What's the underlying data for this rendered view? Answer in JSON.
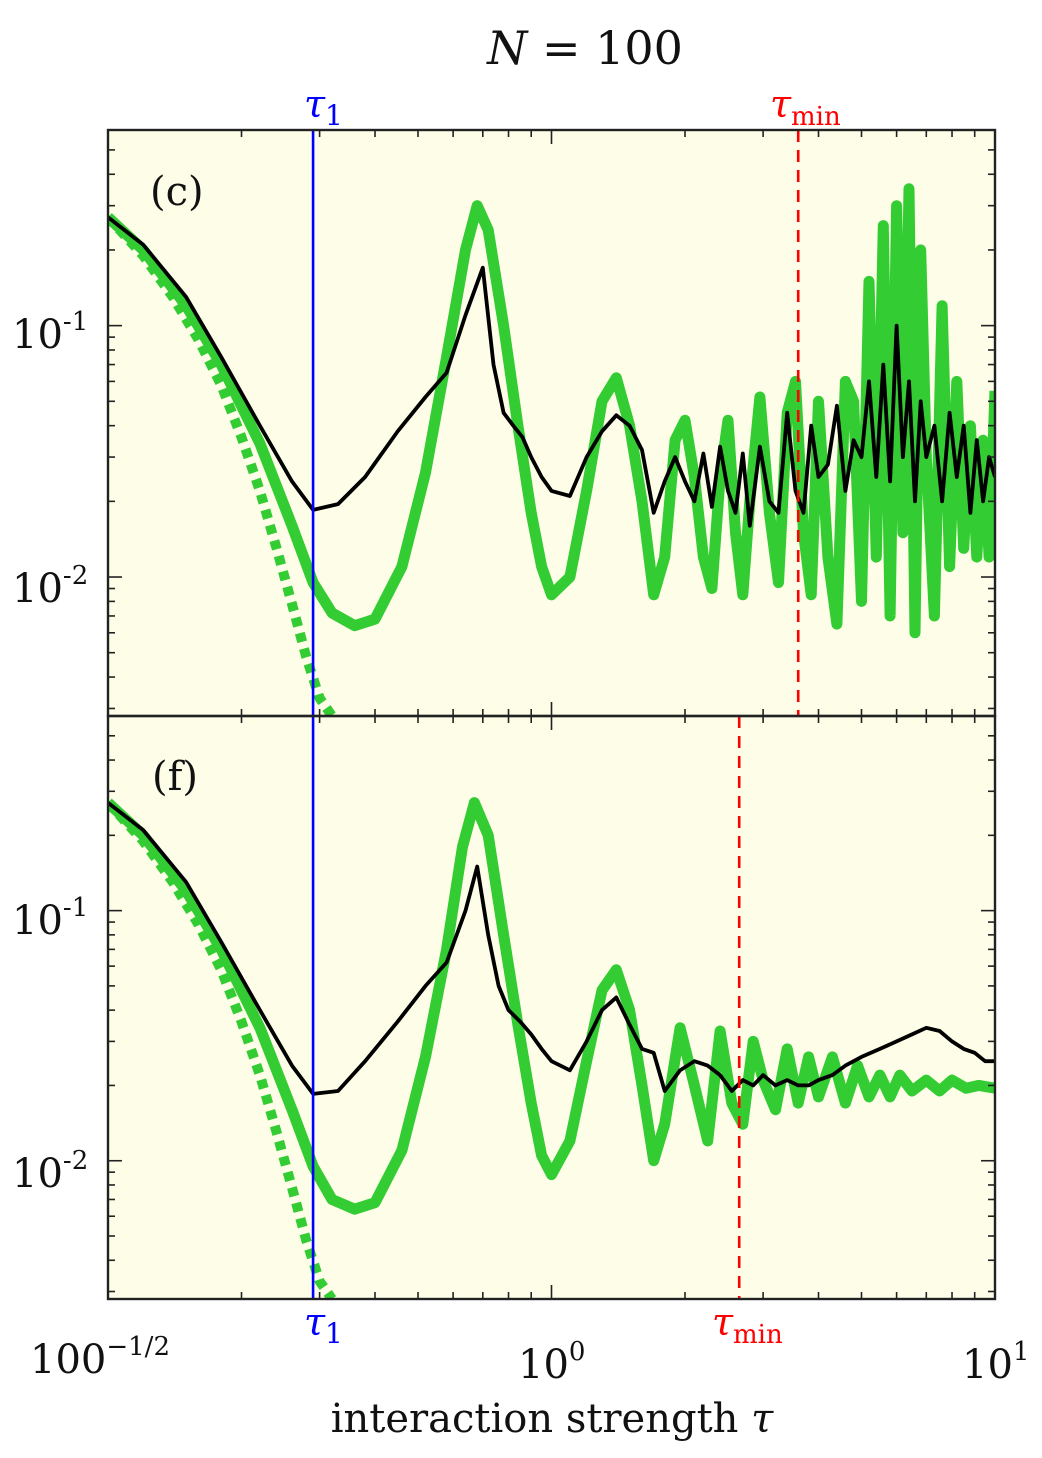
{
  "figure": {
    "title": "N = 100",
    "xlabel": "interaction strength τ",
    "xticklabels": [
      "100^{-1/2}",
      "10^{0}",
      "10^{1}"
    ],
    "yticklabels": [
      "10^{-1}",
      "10^{-2}"
    ],
    "marker_labels": {
      "tau1": "τ1",
      "tau_min": "τmin"
    }
  },
  "colors": {
    "background": "#ffffff",
    "panel_background": "#fdfde8",
    "green": "#33cc33",
    "black": "#000000",
    "tau1_line": "#0000ff",
    "tau_min_line": "#ff0000"
  },
  "chart_data": [
    {
      "type": "line",
      "panel_label": "(c)",
      "xscale": "log",
      "yscale": "log",
      "xlim": [
        0.1,
        10
      ],
      "ylim": [
        0.0028,
        0.6
      ],
      "xticks": [
        0.1,
        1,
        10
      ],
      "yticks": [
        0.1,
        0.01
      ],
      "grid": false,
      "vlines": [
        {
          "label": "τ1",
          "x": 0.29,
          "style": "solid",
          "color": "#0000ff"
        },
        {
          "label": "τmin",
          "x": 3.6,
          "style": "dashed",
          "color": "#ff0000"
        }
      ],
      "series": [
        {
          "style": "thick-solid",
          "color": "#33cc33",
          "x": [
            0.1,
            0.12,
            0.15,
            0.18,
            0.22,
            0.26,
            0.29,
            0.32,
            0.36,
            0.4,
            0.46,
            0.52,
            0.58,
            0.64,
            0.68,
            0.72,
            0.78,
            0.84,
            0.9,
            0.95,
            1.0,
            1.1,
            1.2,
            1.3,
            1.4,
            1.5,
            1.6,
            1.7,
            1.8,
            1.9,
            2.0,
            2.1,
            2.2,
            2.3,
            2.4,
            2.5,
            2.6,
            2.7,
            2.8,
            2.95,
            3.1,
            3.25,
            3.4,
            3.55,
            3.7,
            3.85,
            4.0,
            4.2,
            4.4,
            4.6,
            4.8,
            5.0,
            5.2,
            5.4,
            5.6,
            5.8,
            6.0,
            6.2,
            6.4,
            6.6,
            6.8,
            7.0,
            7.3,
            7.6,
            7.9,
            8.2,
            8.5,
            8.8,
            9.1,
            9.4,
            9.7,
            10.0
          ],
          "y": [
            0.27,
            0.2,
            0.12,
            0.07,
            0.034,
            0.016,
            0.0095,
            0.0072,
            0.0064,
            0.0068,
            0.011,
            0.026,
            0.075,
            0.2,
            0.3,
            0.24,
            0.1,
            0.04,
            0.018,
            0.011,
            0.0085,
            0.01,
            0.022,
            0.05,
            0.062,
            0.04,
            0.02,
            0.0085,
            0.012,
            0.035,
            0.042,
            0.025,
            0.012,
            0.009,
            0.025,
            0.042,
            0.015,
            0.0085,
            0.02,
            0.052,
            0.018,
            0.0095,
            0.045,
            0.06,
            0.015,
            0.0085,
            0.05,
            0.012,
            0.0065,
            0.06,
            0.05,
            0.008,
            0.15,
            0.012,
            0.25,
            0.007,
            0.3,
            0.015,
            0.35,
            0.006,
            0.2,
            0.03,
            0.007,
            0.12,
            0.011,
            0.06,
            0.013,
            0.04,
            0.012,
            0.035,
            0.012,
            0.055
          ]
        },
        {
          "style": "thick-dotted",
          "color": "#33cc33",
          "x": [
            0.1,
            0.12,
            0.14,
            0.16,
            0.18,
            0.2,
            0.22,
            0.24,
            0.26,
            0.28,
            0.3,
            0.32
          ],
          "y": [
            0.27,
            0.19,
            0.13,
            0.088,
            0.058,
            0.036,
            0.022,
            0.013,
            0.0078,
            0.0048,
            0.0033,
            0.0028
          ]
        },
        {
          "style": "solid",
          "color": "#000000",
          "x": [
            0.1,
            0.12,
            0.15,
            0.18,
            0.22,
            0.26,
            0.29,
            0.33,
            0.38,
            0.45,
            0.52,
            0.58,
            0.64,
            0.7,
            0.74,
            0.78,
            0.82,
            0.86,
            0.9,
            0.95,
            1.0,
            1.1,
            1.2,
            1.3,
            1.4,
            1.5,
            1.6,
            1.7,
            1.8,
            1.9,
            2.0,
            2.1,
            2.2,
            2.3,
            2.4,
            2.5,
            2.6,
            2.7,
            2.8,
            2.95,
            3.1,
            3.25,
            3.4,
            3.55,
            3.7,
            3.85,
            4.0,
            4.2,
            4.4,
            4.6,
            4.8,
            5.0,
            5.2,
            5.4,
            5.6,
            5.8,
            6.0,
            6.2,
            6.4,
            6.6,
            6.8,
            7.0,
            7.3,
            7.6,
            7.9,
            8.2,
            8.5,
            8.8,
            9.1,
            9.4,
            9.7,
            10.0
          ],
          "y": [
            0.27,
            0.21,
            0.13,
            0.075,
            0.04,
            0.024,
            0.0185,
            0.0195,
            0.025,
            0.038,
            0.052,
            0.065,
            0.11,
            0.17,
            0.07,
            0.045,
            0.04,
            0.036,
            0.03,
            0.025,
            0.022,
            0.021,
            0.03,
            0.038,
            0.044,
            0.04,
            0.032,
            0.018,
            0.024,
            0.03,
            0.024,
            0.02,
            0.031,
            0.019,
            0.033,
            0.022,
            0.018,
            0.031,
            0.016,
            0.033,
            0.02,
            0.018,
            0.045,
            0.022,
            0.018,
            0.04,
            0.025,
            0.028,
            0.048,
            0.022,
            0.035,
            0.03,
            0.06,
            0.025,
            0.07,
            0.024,
            0.1,
            0.03,
            0.06,
            0.02,
            0.05,
            0.03,
            0.04,
            0.02,
            0.045,
            0.025,
            0.04,
            0.018,
            0.035,
            0.02,
            0.03,
            0.025
          ]
        }
      ]
    },
    {
      "type": "line",
      "panel_label": "(f)",
      "xscale": "log",
      "yscale": "log",
      "xlim": [
        0.1,
        10
      ],
      "ylim": [
        0.0028,
        0.6
      ],
      "xticks": [
        0.1,
        1,
        10
      ],
      "yticks": [
        0.1,
        0.01
      ],
      "grid": false,
      "vlines": [
        {
          "label": "τ1",
          "x": 0.29,
          "style": "solid",
          "color": "#0000ff"
        },
        {
          "label": "τmin",
          "x": 2.65,
          "style": "dashed",
          "color": "#ff0000"
        }
      ],
      "series": [
        {
          "style": "thick-solid",
          "color": "#33cc33",
          "x": [
            0.1,
            0.12,
            0.15,
            0.18,
            0.22,
            0.26,
            0.29,
            0.32,
            0.36,
            0.4,
            0.46,
            0.52,
            0.58,
            0.63,
            0.67,
            0.72,
            0.78,
            0.84,
            0.9,
            0.95,
            1.0,
            1.1,
            1.2,
            1.3,
            1.4,
            1.5,
            1.6,
            1.7,
            1.8,
            1.95,
            2.1,
            2.25,
            2.4,
            2.55,
            2.7,
            2.85,
            3.0,
            3.2,
            3.4,
            3.6,
            3.8,
            4.0,
            4.3,
            4.6,
            4.9,
            5.2,
            5.5,
            5.8,
            6.1,
            6.5,
            7.0,
            7.5,
            8.0,
            8.6,
            9.2,
            10.0
          ],
          "y": [
            0.27,
            0.2,
            0.12,
            0.07,
            0.034,
            0.016,
            0.0095,
            0.007,
            0.0064,
            0.0068,
            0.011,
            0.026,
            0.07,
            0.18,
            0.27,
            0.2,
            0.08,
            0.035,
            0.017,
            0.0105,
            0.0088,
            0.012,
            0.025,
            0.048,
            0.058,
            0.04,
            0.02,
            0.01,
            0.014,
            0.034,
            0.02,
            0.012,
            0.033,
            0.017,
            0.014,
            0.03,
            0.021,
            0.016,
            0.028,
            0.017,
            0.026,
            0.018,
            0.026,
            0.017,
            0.024,
            0.018,
            0.022,
            0.018,
            0.022,
            0.019,
            0.021,
            0.019,
            0.021,
            0.0195,
            0.02,
            0.0195
          ]
        },
        {
          "style": "thick-dotted",
          "color": "#33cc33",
          "x": [
            0.1,
            0.12,
            0.14,
            0.16,
            0.18,
            0.2,
            0.22,
            0.24,
            0.26,
            0.28,
            0.3,
            0.32
          ],
          "y": [
            0.27,
            0.19,
            0.13,
            0.088,
            0.058,
            0.036,
            0.022,
            0.013,
            0.0078,
            0.0048,
            0.0033,
            0.0028
          ]
        },
        {
          "style": "solid",
          "color": "#000000",
          "x": [
            0.1,
            0.12,
            0.15,
            0.18,
            0.22,
            0.26,
            0.29,
            0.33,
            0.38,
            0.45,
            0.52,
            0.58,
            0.64,
            0.68,
            0.72,
            0.76,
            0.8,
            0.85,
            0.9,
            0.95,
            1.0,
            1.1,
            1.2,
            1.3,
            1.4,
            1.5,
            1.6,
            1.7,
            1.8,
            1.95,
            2.1,
            2.25,
            2.4,
            2.55,
            2.7,
            2.85,
            3.0,
            3.2,
            3.4,
            3.6,
            3.8,
            4.0,
            4.3,
            4.6,
            5.0,
            5.5,
            6.0,
            6.5,
            7.0,
            7.5,
            8.0,
            8.5,
            9.0,
            9.5,
            10.0
          ],
          "y": [
            0.27,
            0.21,
            0.13,
            0.075,
            0.04,
            0.024,
            0.0185,
            0.019,
            0.025,
            0.036,
            0.05,
            0.062,
            0.1,
            0.15,
            0.08,
            0.05,
            0.04,
            0.036,
            0.032,
            0.028,
            0.025,
            0.023,
            0.03,
            0.04,
            0.045,
            0.035,
            0.028,
            0.027,
            0.019,
            0.023,
            0.025,
            0.024,
            0.022,
            0.019,
            0.021,
            0.02,
            0.022,
            0.02,
            0.021,
            0.02,
            0.02,
            0.021,
            0.022,
            0.024,
            0.026,
            0.028,
            0.03,
            0.032,
            0.034,
            0.033,
            0.03,
            0.028,
            0.027,
            0.025,
            0.025
          ]
        }
      ]
    }
  ]
}
